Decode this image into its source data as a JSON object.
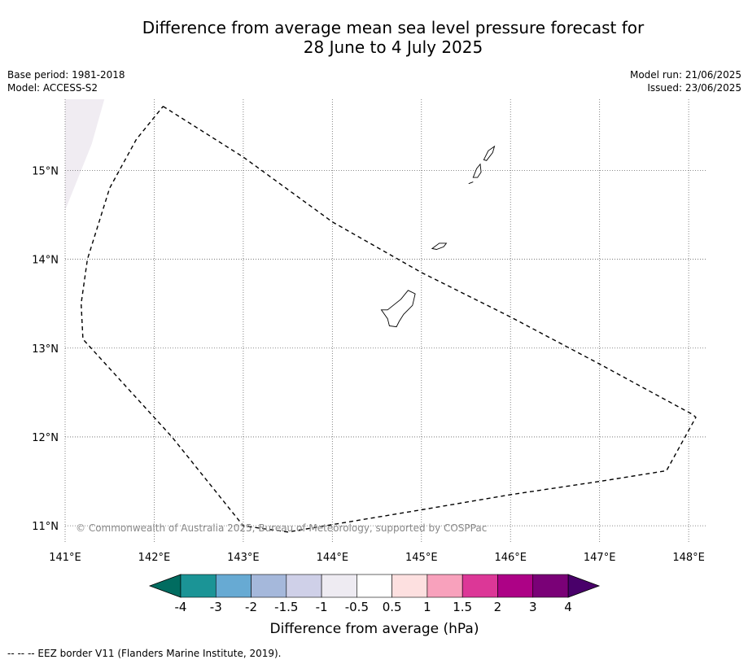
{
  "title": {
    "line1": "Difference from average mean sea level pressure forecast for",
    "line2": "28 June to 4 July 2025"
  },
  "meta": {
    "base_period": "Base period: 1981-2018",
    "model": "Model: ACCESS-S2",
    "model_run": "Model run: 21/06/2025",
    "issued": "Issued: 23/06/2025"
  },
  "map": {
    "lon_range": [
      141,
      148.2
    ],
    "lat_range": [
      10.8,
      15.8
    ],
    "lon_ticks": [
      {
        "v": 141,
        "label": "141°E"
      },
      {
        "v": 142,
        "label": "142°E"
      },
      {
        "v": 143,
        "label": "143°E"
      },
      {
        "v": 144,
        "label": "144°E"
      },
      {
        "v": 145,
        "label": "145°E"
      },
      {
        "v": 146,
        "label": "146°E"
      },
      {
        "v": 147,
        "label": "147°E"
      },
      {
        "v": 148,
        "label": "148°E"
      }
    ],
    "lat_ticks": [
      {
        "v": 15,
        "label": "15°N"
      },
      {
        "v": 14,
        "label": "14°N"
      },
      {
        "v": 13,
        "label": "13°N"
      },
      {
        "v": 12,
        "label": "12°N"
      },
      {
        "v": 11,
        "label": "11°N"
      }
    ],
    "grid": true,
    "eez_border": [
      [
        142.1,
        15.72
      ],
      [
        143.0,
        15.15
      ],
      [
        144.0,
        14.42
      ],
      [
        145.0,
        13.85
      ],
      [
        146.0,
        13.35
      ],
      [
        147.0,
        12.82
      ],
      [
        148.05,
        12.25
      ],
      [
        148.08,
        12.22
      ],
      [
        147.75,
        11.62
      ],
      [
        147.0,
        11.5
      ],
      [
        146.0,
        11.35
      ],
      [
        145.0,
        11.18
      ],
      [
        143.5,
        10.93
      ],
      [
        143.0,
        11.0
      ],
      [
        142.2,
        12.0
      ],
      [
        141.2,
        13.1
      ],
      [
        141.18,
        13.5
      ],
      [
        141.25,
        14.0
      ],
      [
        141.5,
        14.8
      ],
      [
        141.8,
        15.35
      ],
      [
        142.1,
        15.72
      ]
    ],
    "shaded_patch": {
      "color": "#f0ecf2",
      "polygon": [
        [
          141.0,
          15.8
        ],
        [
          141.44,
          15.8
        ],
        [
          141.3,
          15.3
        ],
        [
          141.0,
          14.55
        ]
      ]
    },
    "islands": [
      {
        "name": "Guam",
        "outline": [
          [
            144.62,
            13.43
          ],
          [
            144.77,
            13.55
          ],
          [
            144.85,
            13.65
          ],
          [
            144.93,
            13.61
          ],
          [
            144.9,
            13.48
          ],
          [
            144.8,
            13.38
          ],
          [
            144.75,
            13.3
          ],
          [
            144.72,
            13.24
          ],
          [
            144.64,
            13.25
          ],
          [
            144.62,
            13.33
          ],
          [
            144.55,
            13.43
          ]
        ]
      },
      {
        "name": "Rota",
        "outline": [
          [
            145.12,
            14.12
          ],
          [
            145.2,
            14.18
          ],
          [
            145.28,
            14.18
          ],
          [
            145.25,
            14.14
          ],
          [
            145.17,
            14.11
          ]
        ]
      },
      {
        "name": "Tinian",
        "outline": [
          [
            145.58,
            14.92
          ],
          [
            145.62,
            15.02
          ],
          [
            145.66,
            15.07
          ],
          [
            145.67,
            14.98
          ],
          [
            145.63,
            14.92
          ]
        ]
      },
      {
        "name": "Saipan",
        "outline": [
          [
            145.7,
            15.12
          ],
          [
            145.75,
            15.22
          ],
          [
            145.82,
            15.27
          ],
          [
            145.8,
            15.2
          ],
          [
            145.73,
            15.11
          ]
        ]
      },
      {
        "name": "Aguijan",
        "outline": [
          [
            145.53,
            14.85
          ],
          [
            145.58,
            14.87
          ]
        ]
      }
    ]
  },
  "copyright": "© Commonwealth of Australia 2025, Bureau of Meteorology, supported by COSPPac",
  "colorbar": {
    "label": "Difference from average (hPa)",
    "bounds": [
      "-4",
      "-3",
      "-2",
      "-1.5",
      "-1",
      "-0.5",
      "0.5",
      "1",
      "1.5",
      "2",
      "3",
      "4"
    ],
    "colors": [
      "#1b9496",
      "#67aad3",
      "#a5b8db",
      "#cfd0e8",
      "#eeebf2",
      "#ffffff",
      "#fde0e0",
      "#f8a1bc",
      "#dc3797",
      "#ad0286",
      "#7a0177"
    ],
    "under_color": "#016c60",
    "over_color": "#49006a"
  },
  "footnote": "--  --  -- EEZ border V11 (Flanders Marine Institute, 2019)."
}
